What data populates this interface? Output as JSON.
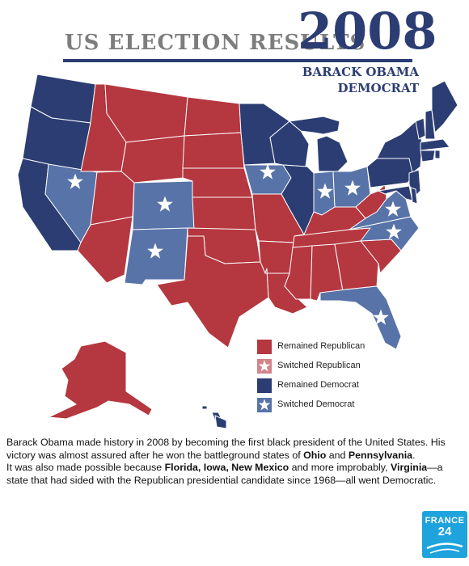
{
  "header": {
    "title": "US ELECTION RESULTS",
    "year": "2008",
    "winner_name": "BARACK OBAMA",
    "winner_party": "DEMOCRAT"
  },
  "colors": {
    "remained_republican": "#b5373f",
    "switched_republican": "#d3848a",
    "remained_democrat": "#2b3d72",
    "switched_democrat": "#5873a8",
    "border": "#ffffff"
  },
  "legend": [
    {
      "key": "remained_republican",
      "label": "Remained Republican",
      "star": false
    },
    {
      "key": "switched_republican",
      "label": "Switched Republican",
      "star": true
    },
    {
      "key": "remained_democrat",
      "label": "Remained Democrat",
      "star": false
    },
    {
      "key": "switched_democrat",
      "label": "Switched Democrat",
      "star": true
    }
  ],
  "switched_states": [
    "Nevada",
    "Colorado",
    "New Mexico",
    "Iowa",
    "Indiana",
    "Ohio",
    "Virginia",
    "North Carolina",
    "Florida"
  ],
  "body": {
    "p1": "Barack Obama made history in 2008 by becoming the first black president of the United States. His victory was almost assured after he won the battleground states of ",
    "ohio": "Ohio",
    "and": " and ",
    "pennsylvania": "Pennsylvania",
    "p1_end": ".",
    "p2_a": "It was also made possible because ",
    "states_list": "Florida, Iowa, New Mexico",
    "p2_b": " and more improbably, ",
    "virginia": "Virginia",
    "p2_c": "—a state that had sided with the Republican presidential candidate since 1968—all went Democratic."
  },
  "logo": {
    "line1": "FRANCE",
    "line2": "24"
  }
}
